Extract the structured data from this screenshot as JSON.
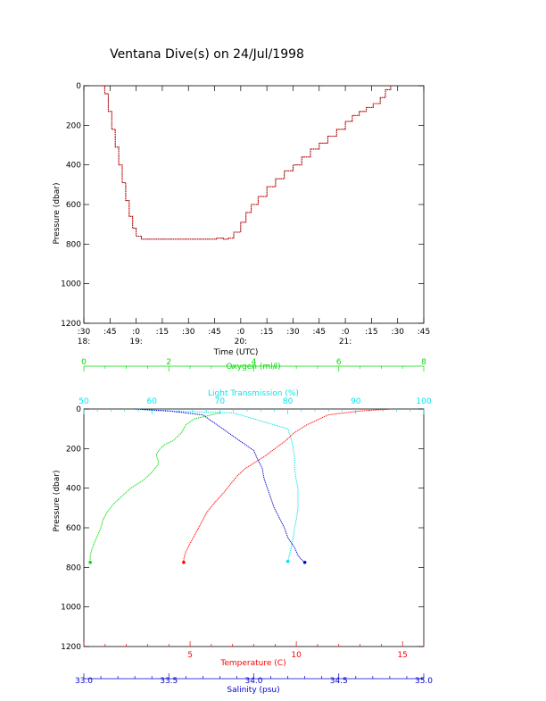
{
  "title": "Ventana Dive(s) on 24/Jul/1998",
  "colors": {
    "black": "#000000",
    "oxygen": "#00dd00",
    "transmission": "#00e5ee",
    "temperature": "#ff0000",
    "salinity": "#0000cc",
    "dive_track": "#cc0000"
  },
  "chart_data": [
    {
      "type": "line",
      "xlabel": "Time (UTC)",
      "ylabel": "Pressure (dbar)",
      "ylim": [
        1200,
        0
      ],
      "y_ticks": [
        "0",
        "200",
        "400",
        "600",
        "800",
        "1000",
        "1200"
      ],
      "x_ticks": [
        {
          "label": ":30",
          "sub": "18:"
        },
        {
          "label": ":45",
          "sub": ""
        },
        {
          "label": ":0",
          "sub": "19:"
        },
        {
          "label": ":15",
          "sub": ""
        },
        {
          "label": ":30",
          "sub": ""
        },
        {
          "label": ":45",
          "sub": ""
        },
        {
          "label": ":0",
          "sub": "20:"
        },
        {
          "label": ":15",
          "sub": ""
        },
        {
          "label": ":30",
          "sub": ""
        },
        {
          "label": ":45",
          "sub": ""
        },
        {
          "label": ":0",
          "sub": "21:"
        },
        {
          "label": ":15",
          "sub": ""
        },
        {
          "label": ":30",
          "sub": ""
        },
        {
          "label": ":45",
          "sub": ""
        }
      ],
      "xlim_minutes": [
        1110,
        1305
      ],
      "series": [
        {
          "x_minutes": [
            1120,
            1122,
            1124,
            1126,
            1128,
            1130,
            1132,
            1134,
            1136,
            1138,
            1140,
            1143,
            1148,
            1160,
            1170,
            1180,
            1186,
            1190,
            1193,
            1196,
            1200,
            1203,
            1206,
            1210,
            1215,
            1220,
            1225,
            1230,
            1235,
            1240,
            1245,
            1250,
            1255,
            1260,
            1264,
            1268,
            1272,
            1276,
            1280,
            1283,
            1286
          ],
          "y_dbar": [
            0,
            40,
            130,
            220,
            310,
            400,
            490,
            580,
            660,
            720,
            760,
            775,
            775,
            775,
            775,
            775,
            770,
            775,
            770,
            740,
            690,
            640,
            600,
            560,
            510,
            470,
            430,
            400,
            360,
            320,
            290,
            255,
            220,
            180,
            150,
            130,
            110,
            90,
            60,
            20,
            0
          ]
        }
      ]
    },
    {
      "type": "line",
      "ylabel": "Pressure (dbar)",
      "ylim": [
        1200,
        0
      ],
      "y_ticks": [
        "0",
        "200",
        "400",
        "600",
        "800",
        "1000",
        "1200"
      ],
      "axes": {
        "oxygen": {
          "label": "Oxygen (ml/l)",
          "range": [
            0,
            8
          ],
          "ticks": [
            "0",
            "2",
            "4",
            "6",
            "8"
          ],
          "position": "top"
        },
        "transmission": {
          "label": "Light Transmission (%)",
          "range": [
            50,
            100
          ],
          "ticks": [
            "50",
            "60",
            "70",
            "80",
            "90",
            "100"
          ],
          "position": "top"
        },
        "temperature": {
          "label": "Temperature (C)",
          "range": [
            0,
            16
          ],
          "ticks": [
            "5",
            "10",
            "15"
          ],
          "position": "bottom"
        },
        "salinity": {
          "label": "Salinity (psu)",
          "range": [
            33.0,
            35.0
          ],
          "ticks": [
            "33.0",
            "33.5",
            "34.0",
            "34.5",
            "35.0"
          ],
          "position": "bottom"
        }
      },
      "series": [
        {
          "axis": "oxygen",
          "x": [
            3.2,
            3.0,
            2.6,
            2.4,
            2.35,
            2.3,
            2.2,
            2.1,
            1.9,
            1.8,
            1.7,
            1.75,
            1.75,
            1.6,
            1.4,
            1.1,
            0.9,
            0.7,
            0.55,
            0.45,
            0.4,
            0.3,
            0.2,
            0.15,
            0.15
          ],
          "y": [
            20,
            30,
            50,
            80,
            100,
            120,
            140,
            160,
            180,
            200,
            230,
            260,
            280,
            320,
            360,
            400,
            440,
            480,
            520,
            560,
            600,
            650,
            700,
            740,
            775
          ]
        },
        {
          "axis": "transmission",
          "x": [
            58,
            59,
            62,
            72,
            80,
            80.5,
            80.8,
            81,
            81,
            81.2,
            81.5,
            81.5,
            81.5,
            81.3,
            81,
            80.8,
            80.5,
            80
          ],
          "y": [
            0,
            5,
            10,
            20,
            100,
            150,
            200,
            250,
            300,
            350,
            400,
            450,
            500,
            550,
            600,
            650,
            700,
            770
          ]
        },
        {
          "axis": "temperature",
          "x": [
            14.5,
            13.0,
            11.5,
            10.5,
            9.9,
            9.5,
            9.0,
            8.5,
            8.2,
            7.6,
            7.2,
            6.9,
            6.6,
            6.1,
            5.8,
            5.6,
            5.4,
            5.2,
            5.0,
            4.8,
            4.7,
            4.7
          ],
          "y": [
            0,
            10,
            30,
            80,
            120,
            160,
            200,
            240,
            260,
            300,
            340,
            380,
            420,
            480,
            520,
            560,
            600,
            640,
            680,
            720,
            760,
            775
          ]
        },
        {
          "axis": "salinity",
          "x": [
            33.3,
            33.5,
            33.7,
            33.75,
            33.8,
            33.85,
            33.9,
            33.95,
            34.0,
            34.02,
            34.05,
            34.06,
            34.08,
            34.1,
            34.12,
            34.15,
            34.18,
            34.2,
            34.24,
            34.26,
            34.28,
            34.3
          ],
          "y": [
            0,
            10,
            30,
            60,
            90,
            120,
            150,
            180,
            210,
            250,
            300,
            350,
            400,
            450,
            500,
            550,
            600,
            650,
            700,
            740,
            760,
            775
          ]
        }
      ]
    }
  ]
}
